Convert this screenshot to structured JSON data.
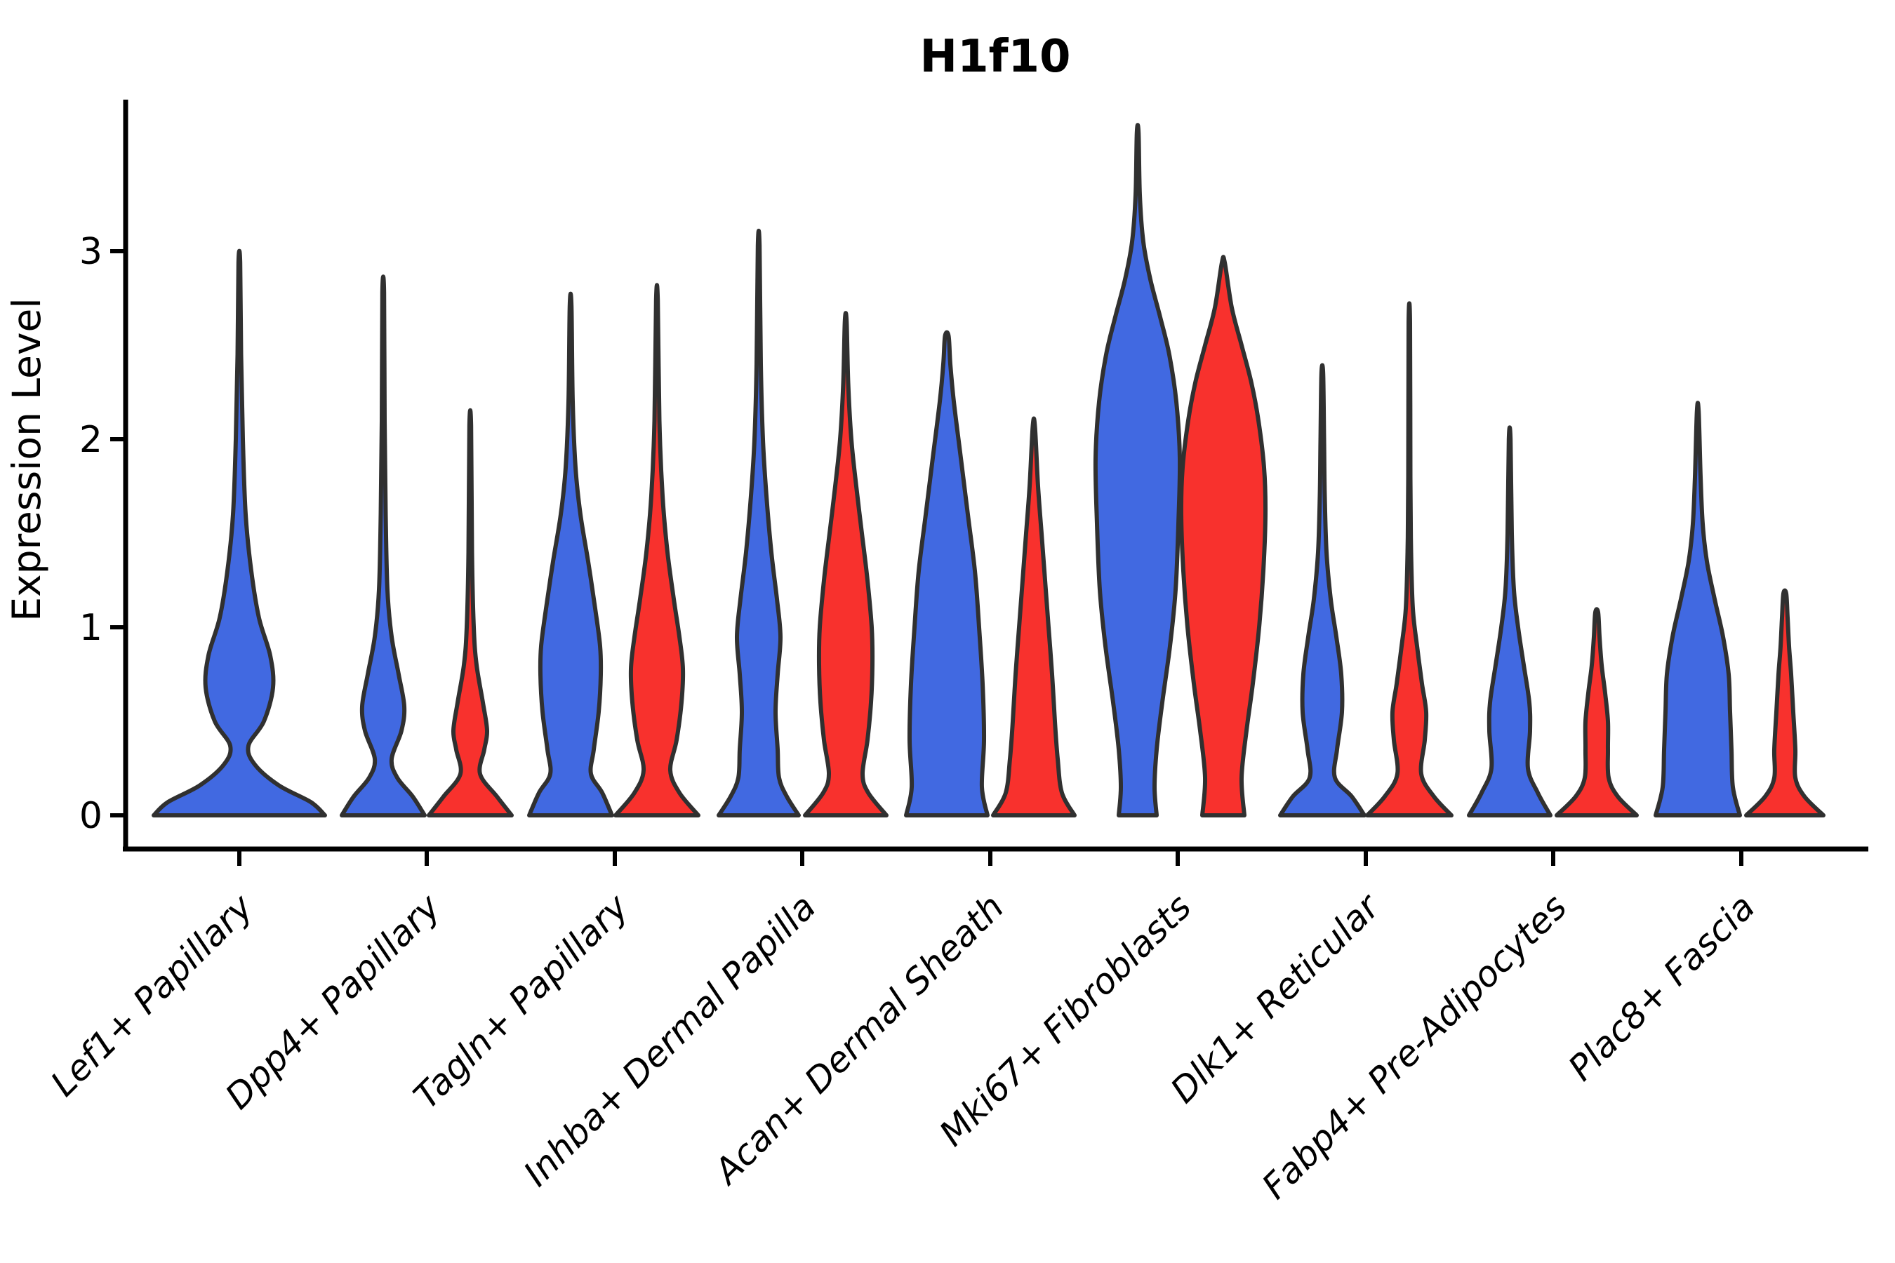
{
  "figure": {
    "title": "H1f10",
    "ylabel": "Expression Level"
  },
  "chart_data": {
    "type": "violin",
    "title": "H1f10",
    "xlabel": "",
    "ylabel": "Expression Level",
    "yticks": [
      0,
      1,
      2,
      3
    ],
    "ylim": [
      -0.18,
      3.81
    ],
    "grid": false,
    "legend_position": "none",
    "groups": [
      {
        "name": "group-1",
        "color": "#4169E1"
      },
      {
        "name": "group-2",
        "color": "#F8312D"
      }
    ],
    "axis_color": "#000000",
    "violin_outline_color": "#303030",
    "categories": [
      "Lef1+ Papillary",
      "Dpp4+ Papillary",
      "Tagln+ Papillary",
      "Inhba+ Dermal Papilla",
      "Acan+ Dermal Sheath",
      "Mki67+ Fibroblasts",
      "Dlk1+ Reticular",
      "Fabp4+ Pre-Adipocytes",
      "Plac8+ Fascia"
    ],
    "category_centers": [
      341,
      608,
      876,
      1143,
      1411,
      1678,
      1946,
      2213,
      2481
    ],
    "violins": [
      {
        "category": "Lef1+ Papillary",
        "group": "group-1",
        "color": "#4169E1",
        "center": 341,
        "max_expression": 2.94,
        "profile": [
          [
            0,
            122
          ],
          [
            0.07,
            102
          ],
          [
            0.16,
            56
          ],
          [
            0.27,
            22
          ],
          [
            0.37,
            13
          ],
          [
            0.5,
            35
          ],
          [
            0.68,
            48
          ],
          [
            0.85,
            44
          ],
          [
            1.05,
            28
          ],
          [
            1.3,
            17
          ],
          [
            1.6,
            9
          ],
          [
            2.0,
            5
          ],
          [
            2.45,
            2.5
          ],
          [
            2.94,
            1.2
          ]
        ]
      },
      {
        "category": "Dpp4+ Papillary",
        "group": "group-1",
        "color": "#4169E1",
        "center": 546,
        "max_expression": 2.78,
        "profile": [
          [
            0,
            59
          ],
          [
            0.1,
            42
          ],
          [
            0.2,
            20
          ],
          [
            0.3,
            12
          ],
          [
            0.45,
            26
          ],
          [
            0.58,
            30
          ],
          [
            0.75,
            22
          ],
          [
            0.95,
            12
          ],
          [
            1.2,
            6
          ],
          [
            1.6,
            3.5
          ],
          [
            2.1,
            2
          ],
          [
            2.78,
            1.2
          ]
        ]
      },
      {
        "category": "Dpp4+ Papillary",
        "group": "group-2",
        "color": "#F8312D",
        "center": 670,
        "max_expression": 2.07,
        "profile": [
          [
            0,
            59
          ],
          [
            0.1,
            38
          ],
          [
            0.22,
            14
          ],
          [
            0.35,
            20
          ],
          [
            0.45,
            24
          ],
          [
            0.6,
            18
          ],
          [
            0.8,
            9
          ],
          [
            1.0,
            5
          ],
          [
            1.4,
            2.5
          ],
          [
            2.07,
            1.2
          ]
        ]
      },
      {
        "category": "Tagln+ Papillary",
        "group": "group-1",
        "color": "#4169E1",
        "center": 813,
        "max_expression": 2.71,
        "profile": [
          [
            0,
            59
          ],
          [
            0.12,
            45
          ],
          [
            0.22,
            29
          ],
          [
            0.35,
            33
          ],
          [
            0.55,
            40
          ],
          [
            0.75,
            43
          ],
          [
            0.9,
            42
          ],
          [
            1.1,
            35
          ],
          [
            1.35,
            25
          ],
          [
            1.6,
            14
          ],
          [
            1.85,
            7
          ],
          [
            2.2,
            3
          ],
          [
            2.71,
            1.2
          ]
        ]
      },
      {
        "category": "Tagln+ Papillary",
        "group": "group-2",
        "color": "#F8312D",
        "center": 936,
        "max_expression": 2.74,
        "profile": [
          [
            0,
            59
          ],
          [
            0.12,
            32
          ],
          [
            0.24,
            19
          ],
          [
            0.4,
            28
          ],
          [
            0.6,
            35
          ],
          [
            0.78,
            37
          ],
          [
            0.95,
            32
          ],
          [
            1.15,
            24
          ],
          [
            1.4,
            15
          ],
          [
            1.7,
            8
          ],
          [
            2.1,
            3.5
          ],
          [
            2.74,
            1.2
          ]
        ]
      },
      {
        "category": "Inhba+ Dermal Papilla",
        "group": "group-1",
        "color": "#4169E1",
        "center": 1081,
        "max_expression": 3.03,
        "profile": [
          [
            0,
            57
          ],
          [
            0.1,
            40
          ],
          [
            0.2,
            29
          ],
          [
            0.35,
            27
          ],
          [
            0.55,
            24
          ],
          [
            0.75,
            27
          ],
          [
            0.95,
            31
          ],
          [
            1.15,
            26
          ],
          [
            1.4,
            18
          ],
          [
            1.7,
            11
          ],
          [
            2.0,
            6
          ],
          [
            2.4,
            3
          ],
          [
            3.03,
            1.2
          ]
        ]
      },
      {
        "category": "Inhba+ Dermal Papilla",
        "group": "group-2",
        "color": "#F8312D",
        "center": 1205,
        "max_expression": 2.63,
        "profile": [
          [
            0,
            58
          ],
          [
            0.12,
            32
          ],
          [
            0.22,
            24
          ],
          [
            0.4,
            31
          ],
          [
            0.6,
            36
          ],
          [
            0.8,
            38
          ],
          [
            1.0,
            37
          ],
          [
            1.25,
            31
          ],
          [
            1.5,
            23
          ],
          [
            1.75,
            15
          ],
          [
            2.0,
            8
          ],
          [
            2.3,
            3.5
          ],
          [
            2.63,
            1.2
          ]
        ]
      },
      {
        "category": "Acan+ Dermal Sheath",
        "group": "group-1",
        "color": "#4169E1",
        "center": 1349,
        "max_expression": 2.55,
        "profile": [
          [
            0,
            58
          ],
          [
            0.15,
            50
          ],
          [
            0.4,
            53
          ],
          [
            0.7,
            51
          ],
          [
            1.0,
            46
          ],
          [
            1.3,
            40
          ],
          [
            1.6,
            30
          ],
          [
            1.9,
            20
          ],
          [
            2.2,
            10
          ],
          [
            2.4,
            5
          ],
          [
            2.55,
            2.5
          ]
        ]
      },
      {
        "category": "Acan+ Dermal Sheath",
        "group": "group-2",
        "color": "#F8312D",
        "center": 1473,
        "max_expression": 2.07,
        "profile": [
          [
            0,
            58
          ],
          [
            0.12,
            40
          ],
          [
            0.3,
            34
          ],
          [
            0.5,
            30
          ],
          [
            0.75,
            26
          ],
          [
            1.0,
            21
          ],
          [
            1.25,
            16
          ],
          [
            1.5,
            11
          ],
          [
            1.75,
            6
          ],
          [
            2.07,
            1.5
          ]
        ]
      },
      {
        "category": "Mki67+ Fibroblasts",
        "group": "group-1",
        "color": "#4169E1",
        "center": 1621,
        "max_expression": 3.63,
        "profile": [
          [
            0,
            27
          ],
          [
            0.15,
            24
          ],
          [
            0.35,
            27
          ],
          [
            0.6,
            35
          ],
          [
            0.9,
            46
          ],
          [
            1.2,
            54
          ],
          [
            1.55,
            58
          ],
          [
            1.9,
            60
          ],
          [
            2.2,
            55
          ],
          [
            2.45,
            45
          ],
          [
            2.65,
            32
          ],
          [
            2.85,
            18
          ],
          [
            3.05,
            8
          ],
          [
            3.3,
            3
          ],
          [
            3.63,
            1.2
          ]
        ]
      },
      {
        "category": "Mki67+ Fibroblasts",
        "group": "group-2",
        "color": "#F8312D",
        "center": 1743,
        "max_expression": 2.94,
        "profile": [
          [
            0,
            30
          ],
          [
            0.2,
            26
          ],
          [
            0.45,
            33
          ],
          [
            0.7,
            42
          ],
          [
            1.0,
            51
          ],
          [
            1.3,
            57
          ],
          [
            1.6,
            60
          ],
          [
            1.85,
            58
          ],
          [
            2.1,
            50
          ],
          [
            2.3,
            40
          ],
          [
            2.5,
            26
          ],
          [
            2.7,
            12
          ],
          [
            2.94,
            2
          ]
        ]
      },
      {
        "category": "Dlk1+ Reticular",
        "group": "group-1",
        "color": "#4169E1",
        "center": 1884,
        "max_expression": 2.35,
        "profile": [
          [
            0,
            60
          ],
          [
            0.1,
            42
          ],
          [
            0.2,
            18
          ],
          [
            0.35,
            21
          ],
          [
            0.55,
            28
          ],
          [
            0.75,
            27
          ],
          [
            0.95,
            20
          ],
          [
            1.15,
            12
          ],
          [
            1.4,
            6
          ],
          [
            1.7,
            3.5
          ],
          [
            2.0,
            2.5
          ],
          [
            2.35,
            1.2
          ]
        ]
      },
      {
        "category": "Dlk1+ Reticular",
        "group": "group-2",
        "color": "#F8312D",
        "center": 2008,
        "max_expression": 2.62,
        "profile": [
          [
            0,
            60
          ],
          [
            0.1,
            35
          ],
          [
            0.22,
            17
          ],
          [
            0.4,
            22
          ],
          [
            0.55,
            24
          ],
          [
            0.7,
            18
          ],
          [
            0.9,
            11
          ],
          [
            1.1,
            5
          ],
          [
            1.4,
            2.5
          ],
          [
            1.8,
            1.5
          ],
          [
            2.62,
            1
          ]
        ]
      },
      {
        "category": "Fabp4+ Pre-Adipocytes",
        "group": "group-1",
        "color": "#4169E1",
        "center": 2151,
        "max_expression": 2.0,
        "profile": [
          [
            0,
            58
          ],
          [
            0.12,
            40
          ],
          [
            0.25,
            26
          ],
          [
            0.45,
            29
          ],
          [
            0.6,
            28
          ],
          [
            0.8,
            20
          ],
          [
            1.0,
            12
          ],
          [
            1.2,
            6
          ],
          [
            1.5,
            3
          ],
          [
            2.0,
            1.2
          ]
        ]
      },
      {
        "category": "Fabp4+ Pre-Adipocytes",
        "group": "group-2",
        "color": "#F8312D",
        "center": 2275,
        "max_expression": 1.08,
        "profile": [
          [
            0,
            57
          ],
          [
            0.1,
            30
          ],
          [
            0.2,
            17
          ],
          [
            0.35,
            16
          ],
          [
            0.5,
            16
          ],
          [
            0.65,
            12
          ],
          [
            0.8,
            7
          ],
          [
            0.95,
            4
          ],
          [
            1.08,
            2
          ]
        ]
      },
      {
        "category": "Plac8+ Fascia",
        "group": "group-1",
        "color": "#4169E1",
        "center": 2419,
        "max_expression": 2.15,
        "profile": [
          [
            0,
            60
          ],
          [
            0.15,
            50
          ],
          [
            0.35,
            48
          ],
          [
            0.55,
            46
          ],
          [
            0.75,
            44
          ],
          [
            0.95,
            36
          ],
          [
            1.15,
            24
          ],
          [
            1.35,
            13
          ],
          [
            1.55,
            7
          ],
          [
            1.8,
            4
          ],
          [
            2.15,
            1.2
          ]
        ]
      },
      {
        "category": "Plac8+ Fascia",
        "group": "group-2",
        "color": "#F8312D",
        "center": 2543,
        "max_expression": 1.18,
        "profile": [
          [
            0,
            55
          ],
          [
            0.1,
            28
          ],
          [
            0.2,
            15
          ],
          [
            0.35,
            15
          ],
          [
            0.55,
            12
          ],
          [
            0.75,
            9
          ],
          [
            0.9,
            6
          ],
          [
            1.05,
            4
          ],
          [
            1.18,
            2
          ]
        ]
      }
    ]
  }
}
